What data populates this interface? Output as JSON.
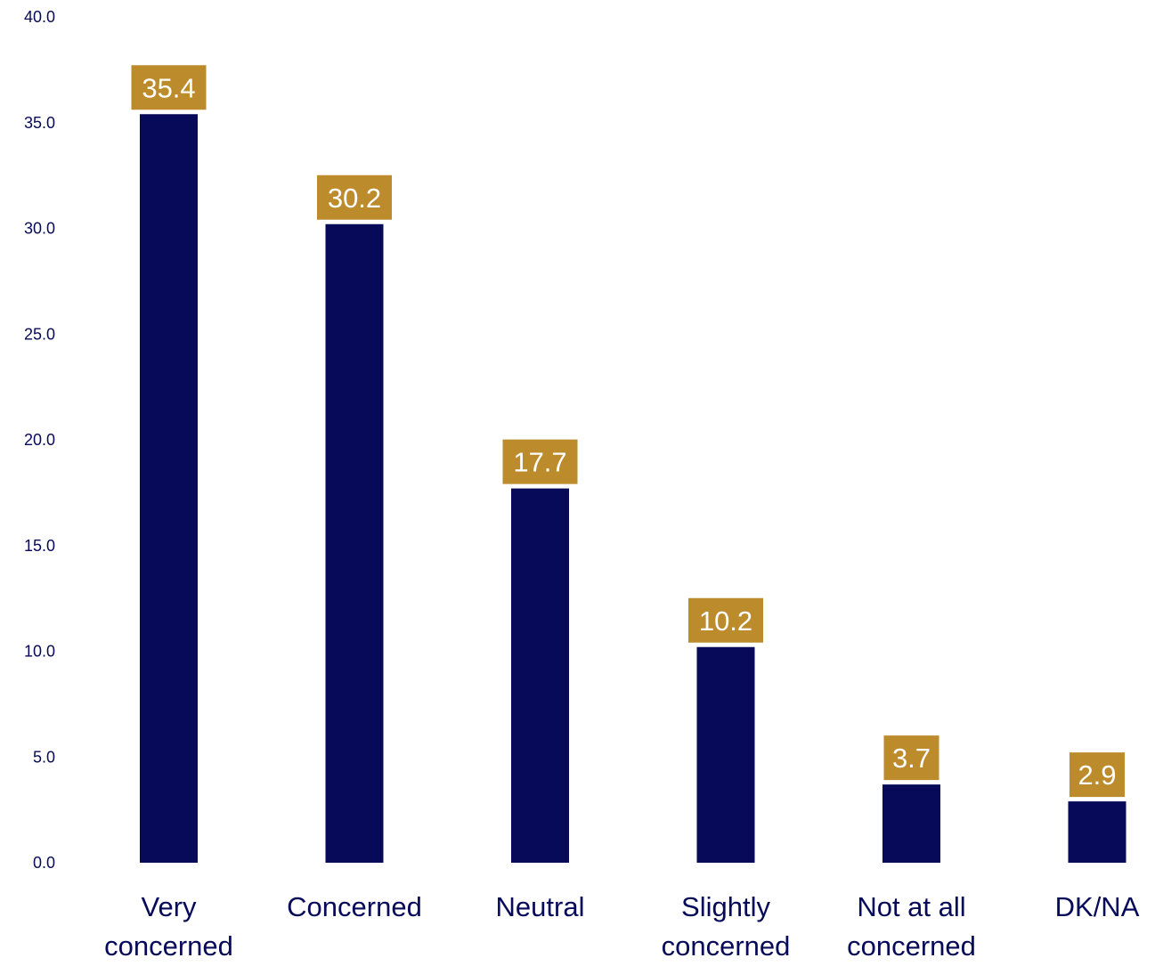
{
  "chart_data": {
    "type": "bar",
    "title": "",
    "xlabel": "",
    "ylabel": "",
    "ylim": [
      0,
      40
    ],
    "yticks": [
      "0.0",
      "5.0",
      "10.0",
      "15.0",
      "20.0",
      "25.0",
      "30.0",
      "35.0",
      "40.0"
    ],
    "categories": [
      [
        "Very",
        "concerned"
      ],
      [
        "Concerned"
      ],
      [
        "Neutral"
      ],
      [
        "Slightly",
        "concerned"
      ],
      [
        "Not at all",
        "concerned"
      ],
      [
        "DK/NA"
      ]
    ],
    "values": [
      35.4,
      30.2,
      17.7,
      10.2,
      3.7,
      2.9
    ],
    "data_labels": [
      "35.4",
      "30.2",
      "17.7",
      "10.2",
      "3.7",
      "2.9"
    ],
    "grid": false,
    "legend": "none",
    "colors": {
      "bar": "#060a58",
      "label_bg": "#bc8b2c",
      "label_text": "#ffffff",
      "axis_text": "#060a58"
    }
  }
}
